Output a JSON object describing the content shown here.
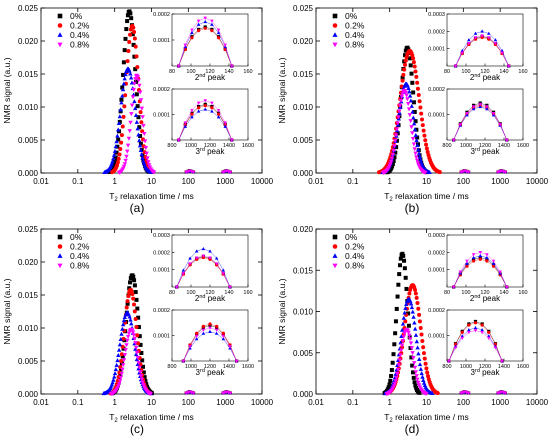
{
  "figure": {
    "panels": [
      "(a)",
      "(b)",
      "(c)",
      "(d)"
    ]
  },
  "legend": [
    {
      "label": "0%",
      "color": "#000000",
      "marker": "square"
    },
    {
      "label": "0.2%",
      "color": "#ff0000",
      "marker": "circle"
    },
    {
      "label": "0.4%",
      "color": "#0000ff",
      "marker": "triangle-up"
    },
    {
      "label": "0.8%",
      "color": "#ff00ff",
      "marker": "triangle-down"
    }
  ],
  "chart_data": [
    {
      "type": "scatter",
      "panel": "(a)",
      "xlabel": "T2 relaxation time / ms",
      "ylabel": "NMR signal (a.u.)",
      "xscale": "log",
      "xlim": [
        0.01,
        10000
      ],
      "ylim": [
        0,
        0.025
      ],
      "x_ticks": [
        "0.01",
        "0.1",
        "1",
        "10",
        "100",
        "1000",
        "10000"
      ],
      "y_ticks": [
        "0.000",
        "0.005",
        "0.010",
        "0.015",
        "0.020",
        "0.025"
      ],
      "main_peaks": [
        {
          "name": "0%",
          "center": 2.5,
          "height": 0.0245,
          "width": 0.17
        },
        {
          "name": "0.2%",
          "center": 3.0,
          "height": 0.0223,
          "width": 0.17
        },
        {
          "name": "0.4%",
          "center": 2.3,
          "height": 0.0158,
          "width": 0.2
        },
        {
          "name": "0.8%",
          "center": 4.0,
          "height": 0.0148,
          "width": 0.15
        }
      ],
      "insets": [
        {
          "label": "2nd peak",
          "xlim": [
            80,
            160
          ],
          "x_ticks": [
            "80",
            "100",
            "120",
            "140",
            "160"
          ],
          "ylim": [
            0,
            0.0002
          ],
          "y_ticks": [
            "0.0001",
            "0.0002"
          ],
          "center": 115,
          "halfwidth": 28,
          "heights": [
            0.00015,
            0.000145,
            0.00017,
            0.000185
          ]
        },
        {
          "label": "3rd peak",
          "xlim": [
            800,
            1600
          ],
          "x_ticks": [
            "800",
            "1000",
            "1200",
            "1400",
            "1600"
          ],
          "ylim": [
            0,
            0.0002
          ],
          "y_ticks": [
            "0.0001",
            "0.0002"
          ],
          "center": 1150,
          "halfwidth": 280,
          "heights": [
            0.00014,
            0.000135,
            0.00012,
            0.000155
          ]
        }
      ]
    },
    {
      "type": "scatter",
      "panel": "(b)",
      "xlabel": "T2 relaxation time / ms",
      "ylabel": "NMR signal (a.u.)",
      "xscale": "log",
      "xlim": [
        0.01,
        10000
      ],
      "ylim": [
        0,
        0.025
      ],
      "x_ticks": [
        "0.01",
        "0.1",
        "1",
        "10",
        "100",
        "1000",
        "10000"
      ],
      "y_ticks": [
        "0.000",
        "0.005",
        "0.010",
        "0.015",
        "0.020",
        "0.025"
      ],
      "main_peaks": [
        {
          "name": "0%",
          "center": 3.0,
          "height": 0.019,
          "width": 0.17
        },
        {
          "name": "0.2%",
          "center": 3.5,
          "height": 0.0185,
          "width": 0.26
        },
        {
          "name": "0.4%",
          "center": 2.8,
          "height": 0.0135,
          "width": 0.2
        },
        {
          "name": "0.8%",
          "center": 2.5,
          "height": 0.0125,
          "width": 0.18
        }
      ],
      "insets": [
        {
          "label": "2nd peak",
          "xlim": [
            80,
            160
          ],
          "x_ticks": [
            "80",
            "100",
            "120",
            "140",
            "160"
          ],
          "ylim": [
            0,
            0.0003
          ],
          "y_ticks": [
            "0.0001",
            "0.0002",
            "0.0003"
          ],
          "center": 117,
          "halfwidth": 28,
          "heights": [
            0.00017,
            0.000165,
            0.0002,
            0.000175
          ]
        },
        {
          "label": "3rd peak",
          "xlim": [
            800,
            1600
          ],
          "x_ticks": [
            "800",
            "1000",
            "1200",
            "1400",
            "1600"
          ],
          "ylim": [
            0,
            0.0002
          ],
          "y_ticks": [
            "0.0001",
            "0.0002"
          ],
          "center": 1150,
          "halfwidth": 280,
          "heights": [
            0.000145,
            0.000135,
            0.00013,
            0.00014
          ]
        }
      ]
    },
    {
      "type": "scatter",
      "panel": "(c)",
      "xlabel": "T2 relaxation time / ms",
      "ylabel": "NMR signal (a.u.)",
      "xscale": "log",
      "xlim": [
        0.01,
        10000
      ],
      "ylim": [
        0,
        0.025
      ],
      "x_ticks": [
        "0.01",
        "0.1",
        "1",
        "10",
        "100",
        "1000",
        "10000"
      ],
      "y_ticks": [
        "0.000",
        "0.005",
        "0.010",
        "0.015",
        "0.020",
        "0.025"
      ],
      "main_peaks": [
        {
          "name": "0%",
          "center": 3.0,
          "height": 0.018,
          "width": 0.17
        },
        {
          "name": "0.2%",
          "center": 2.7,
          "height": 0.0158,
          "width": 0.17
        },
        {
          "name": "0.4%",
          "center": 2.2,
          "height": 0.0123,
          "width": 0.2
        },
        {
          "name": "0.8%",
          "center": 2.8,
          "height": 0.0098,
          "width": 0.17
        }
      ],
      "insets": [
        {
          "label": "2nd peak",
          "xlim": [
            80,
            160
          ],
          "x_ticks": [
            "80",
            "100",
            "120",
            "140",
            "160"
          ],
          "ylim": [
            0,
            0.0003
          ],
          "y_ticks": [
            "0.0001",
            "0.0002",
            "0.0003"
          ],
          "center": 113,
          "halfwidth": 28,
          "heights": [
            0.000175,
            0.00017,
            0.00022,
            0.00018
          ]
        },
        {
          "label": "3rd peak",
          "xlim": [
            800,
            1600
          ],
          "x_ticks": [
            "800",
            "1000",
            "1200",
            "1400",
            "1600"
          ],
          "ylim": [
            0,
            0.0002
          ],
          "y_ticks": [
            "0.0001",
            "0.0002"
          ],
          "center": 1200,
          "halfwidth": 280,
          "heights": [
            0.00014,
            0.000145,
            0.000115,
            0.00013
          ]
        }
      ]
    },
    {
      "type": "scatter",
      "panel": "(d)",
      "xlabel": "T2 relaxation time / ms",
      "ylabel": "NMR signal (a.u.)",
      "xscale": "log",
      "xlim": [
        0.01,
        10000
      ],
      "ylim": [
        0,
        0.02
      ],
      "x_ticks": [
        "0.01",
        "0.1",
        "1",
        "10",
        "100",
        "1000",
        "10000"
      ],
      "y_ticks": [
        "0.000",
        "0.005",
        "0.010",
        "0.015",
        "0.020"
      ],
      "main_peaks": [
        {
          "name": "0%",
          "center": 2.2,
          "height": 0.017,
          "width": 0.15
        },
        {
          "name": "0.2%",
          "center": 4.2,
          "height": 0.0132,
          "width": 0.22
        },
        {
          "name": "0.4%",
          "center": 3.3,
          "height": 0.0115,
          "width": 0.2
        },
        {
          "name": "0.8%",
          "center": 2.9,
          "height": 0.0078,
          "width": 0.17
        }
      ],
      "insets": [
        {
          "label": "2nd peak",
          "xlim": [
            80,
            160
          ],
          "x_ticks": [
            "80",
            "100",
            "120",
            "140",
            "160"
          ],
          "ylim": [
            0,
            0.0003
          ],
          "y_ticks": [
            "0.0001",
            "0.0002",
            "0.0003"
          ],
          "center": 115,
          "halfwidth": 28,
          "heights": [
            0.00017,
            0.00016,
            0.00018,
            0.0002
          ]
        },
        {
          "label": "3rd peak",
          "xlim": [
            800,
            1600
          ],
          "x_ticks": [
            "800",
            "1000",
            "1200",
            "1400",
            "1600"
          ],
          "ylim": [
            0,
            0.0002
          ],
          "y_ticks": [
            "0.0001",
            "0.0002"
          ],
          "center": 1100,
          "halfwidth": 280,
          "heights": [
            0.000155,
            0.00015,
            0.00013,
            0.00012
          ]
        }
      ]
    }
  ]
}
